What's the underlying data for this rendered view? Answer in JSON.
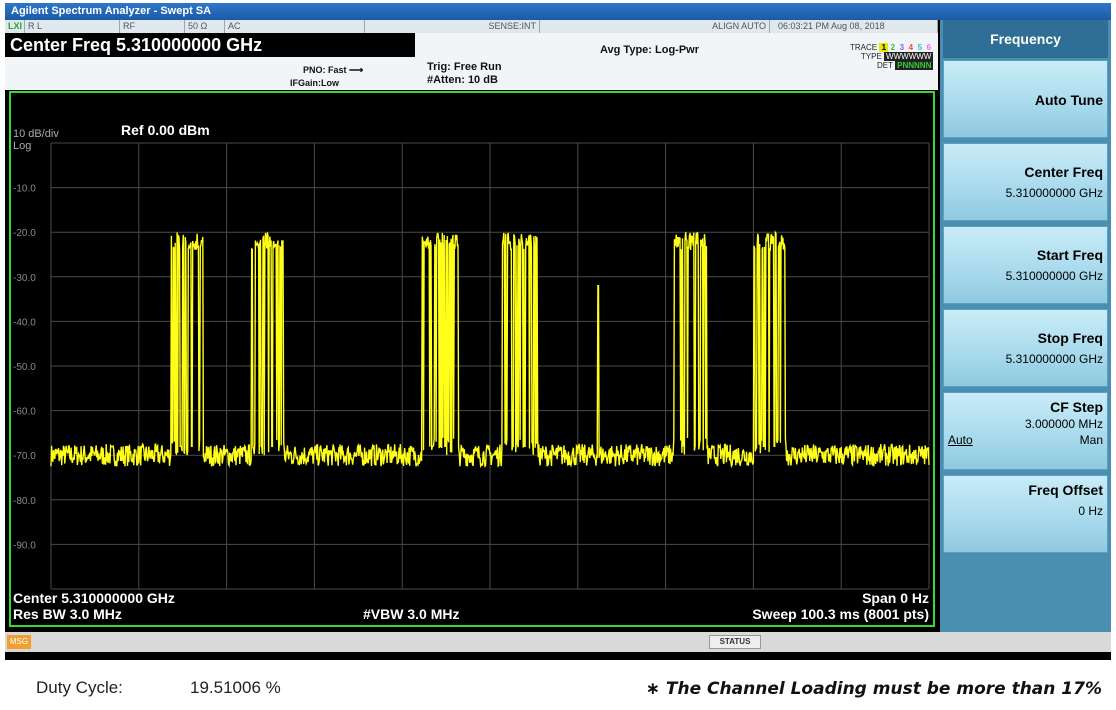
{
  "window": {
    "title": "Agilent Spectrum Analyzer - Swept SA"
  },
  "status_row": {
    "lx": "LXI",
    "rl": "R L",
    "rf": "RF",
    "impedance": "50 Ω",
    "coupling": "AC",
    "sense": "SENSE:INT",
    "align": "ALIGN AUTO",
    "datetime": "06:03:21 PM Aug 08, 2018"
  },
  "settings": {
    "center_freq_display": "Center Freq 5.310000000 GHz",
    "pno": "PNO: Fast",
    "ifgain": "IFGain:Low",
    "trig": "Trig: Free Run",
    "atten": "#Atten: 10 dB",
    "avg_type": "Avg Type: Log-Pwr",
    "trace_label": "TRACE",
    "type_label": "TYPE",
    "det_label": "DET",
    "trace_numbers": [
      "1",
      "2",
      "3",
      "4",
      "5",
      "6"
    ],
    "trace_colors": [
      "#e8e800",
      "#30c030",
      "#8060ff",
      "#ff4040",
      "#30c0c0",
      "#ff60ff"
    ],
    "type_values": "WWWWWW",
    "det_values": "PNNNNN"
  },
  "screen": {
    "scale": "10 dB/div",
    "log": "Log",
    "ref_level": "Ref 0.00 dBm",
    "center": "Center 5.310000000 GHz",
    "res_bw": "Res BW 3.0 MHz",
    "vbw": "#VBW 3.0 MHz",
    "span": "Span 0 Hz",
    "sweep": "Sweep  100.3 ms (8001 pts)"
  },
  "chart_data": {
    "type": "line",
    "title": "",
    "xlabel": "",
    "ylabel": "",
    "x_range_ms": [
      0,
      100.3
    ],
    "ylim": [
      -100,
      0
    ],
    "y_tick_labels": [
      "-10.0",
      "-20.0",
      "-30.0",
      "-40.0",
      "-50.0",
      "-60.0",
      "-70.0",
      "-80.0",
      "-90.0"
    ],
    "y_ticks": [
      -10,
      -20,
      -30,
      -40,
      -50,
      -60,
      -70,
      -80,
      -90
    ],
    "grid": true,
    "trace_color": "#ffff1a",
    "noise_floor_dbm": -70,
    "burst_level_dbm": -20,
    "bursts_ms": [
      [
        13.7,
        17.4
      ],
      [
        22.9,
        26.6
      ],
      [
        42.4,
        46.5
      ],
      [
        51.5,
        55.6
      ],
      [
        71.1,
        74.9
      ],
      [
        80.3,
        84.0
      ]
    ],
    "spike_ms": 62.5,
    "spike_level_dbm": -32
  },
  "softkeys": {
    "title": "Frequency",
    "keys": [
      {
        "label": "Auto Tune",
        "value": ""
      },
      {
        "label": "Center Freq",
        "value": "5.310000000 GHz"
      },
      {
        "label": "Start Freq",
        "value": "5.310000000 GHz"
      },
      {
        "label": "Stop Freq",
        "value": "5.310000000 GHz"
      },
      {
        "label": "CF Step",
        "value": "3.000000 MHz",
        "opt_left": "Auto",
        "opt_right": "Man"
      },
      {
        "label": "Freq Offset",
        "value": "0 Hz"
      }
    ]
  },
  "msgbar": {
    "msg": "MSG",
    "status": "STATUS"
  },
  "footer": {
    "duty_label": "Duty Cycle:",
    "duty_value": "19.51006 %",
    "note": "∗ The Channel Loading must be more than 17%"
  }
}
